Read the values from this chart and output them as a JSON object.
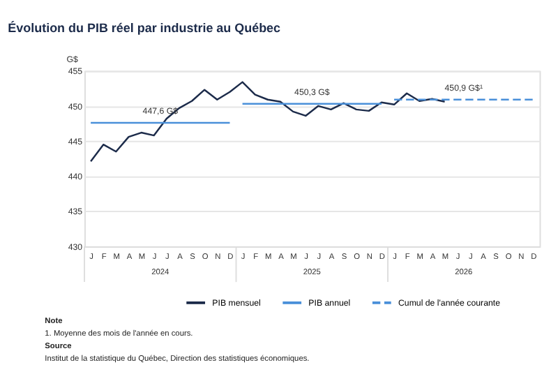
{
  "chart_data": {
    "type": "line",
    "title": "Évolution du PIB réel par industrie au Québec",
    "ylabel": "G$",
    "ylim": [
      430,
      455
    ],
    "yticks": [
      430,
      435,
      440,
      445,
      450,
      455
    ],
    "grid": "y",
    "legend": "bottom",
    "categories": [
      "J",
      "F",
      "M",
      "A",
      "M",
      "J",
      "J",
      "A",
      "S",
      "O",
      "N",
      "D",
      "J",
      "F",
      "M",
      "A",
      "M",
      "J",
      "J",
      "A",
      "S",
      "O",
      "N",
      "D",
      "J",
      "F",
      "M",
      "A",
      "M",
      "J",
      "J",
      "A",
      "S",
      "O",
      "N",
      "D"
    ],
    "series": [
      {
        "name": "PIB mensuel",
        "color": "#1c2b4a",
        "values": [
          442.1,
          444.5,
          443.5,
          445.6,
          446.2,
          445.8,
          448.2,
          449.7,
          450.7,
          452.3,
          450.9,
          452.0,
          453.4,
          451.6,
          450.9,
          450.6,
          449.2,
          448.6,
          450.0,
          449.5,
          450.4,
          449.5,
          449.3,
          450.5,
          450.2,
          451.8,
          450.7,
          451.0,
          450.6,
          null,
          null,
          null,
          null,
          null,
          null,
          null
        ]
      },
      {
        "name": "PIB annuel",
        "color": "#4a90d9",
        "values": [
          447.6,
          447.6,
          447.6,
          447.6,
          447.6,
          447.6,
          447.6,
          447.6,
          447.6,
          447.6,
          447.6,
          447.6,
          null,
          null,
          null,
          null,
          null,
          null,
          null,
          null,
          null,
          null,
          null,
          null,
          null,
          null,
          null,
          null,
          null,
          null,
          null,
          null,
          null,
          null,
          null,
          null
        ]
      },
      {
        "color": "#4a90d9",
        "values": [
          null,
          null,
          null,
          null,
          null,
          null,
          null,
          null,
          null,
          null,
          null,
          null,
          450.3,
          450.3,
          450.3,
          450.3,
          450.3,
          450.3,
          450.3,
          450.3,
          450.3,
          450.3,
          450.3,
          450.3,
          null,
          null,
          null,
          null,
          null,
          null,
          null,
          null,
          null,
          null,
          null,
          null
        ]
      },
      {
        "name": "Cumul de l'année courante",
        "color": "#4a90d9",
        "line_style": "dashed",
        "values": [
          null,
          null,
          null,
          null,
          null,
          null,
          null,
          null,
          null,
          null,
          null,
          null,
          null,
          null,
          null,
          null,
          null,
          null,
          null,
          null,
          null,
          null,
          null,
          null,
          450.9,
          450.9,
          450.9,
          450.9,
          450.9,
          450.9,
          450.9,
          450.9,
          450.9,
          450.9,
          450.9,
          450.9
        ]
      }
    ],
    "annotations": [
      {
        "text": "447,6 G$",
        "y": 447.6
      },
      {
        "text": "450,3 G$",
        "y": 450.3
      },
      {
        "text": "450,9 G$¹",
        "y": 450.9
      },
      "2024",
      "2025",
      "2026",
      "Note",
      "1.   Moyenne des mois de l'année en cours.",
      "Source",
      "Institut de la statistique du Québec, Direction des statistiques économiques."
    ]
  }
}
